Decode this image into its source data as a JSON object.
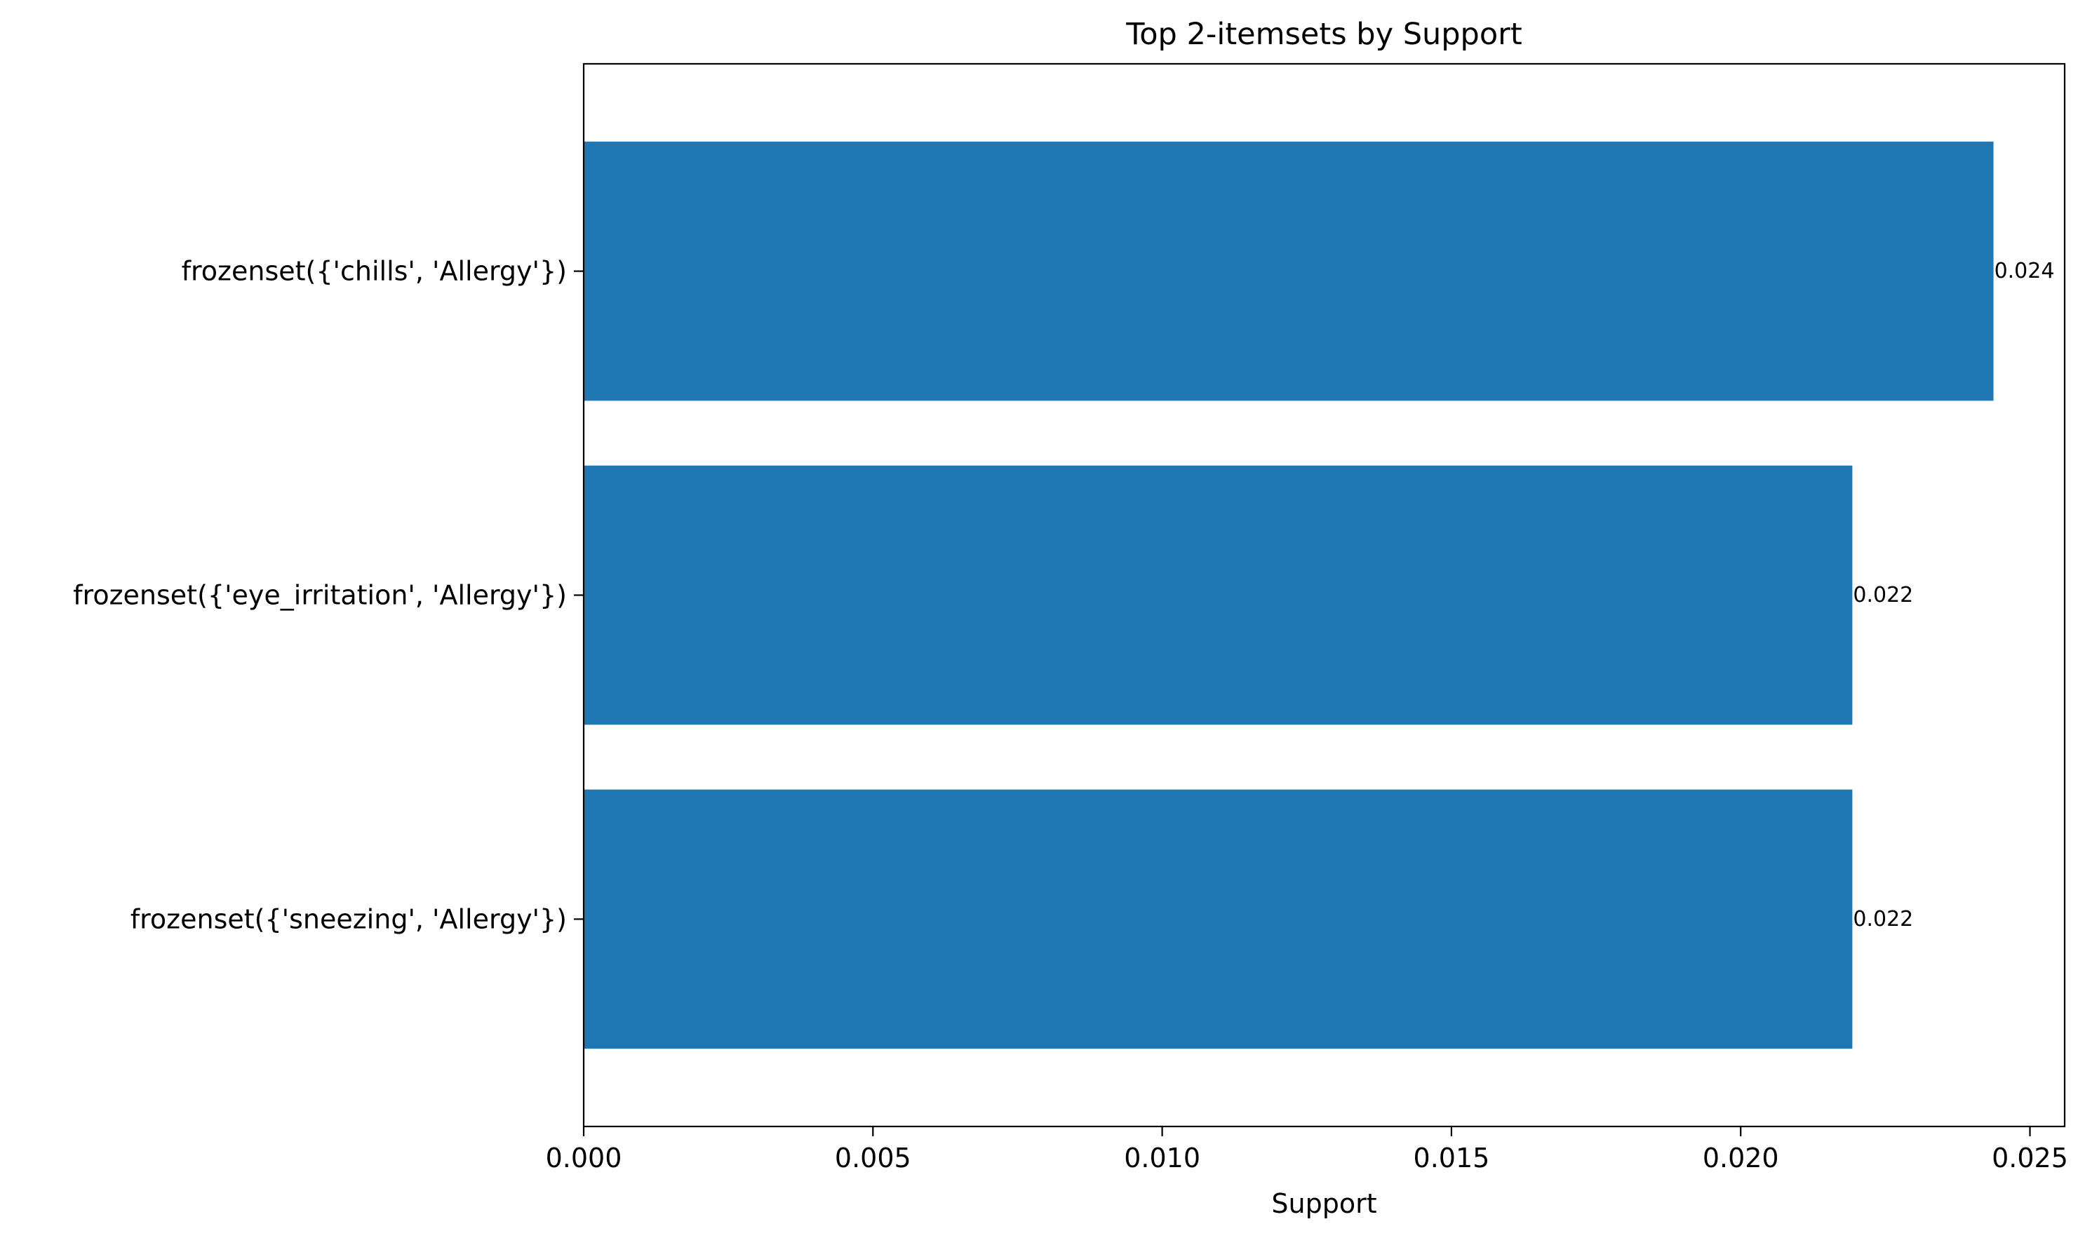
{
  "chart_data": {
    "type": "bar",
    "orientation": "horizontal",
    "title": "Top 2-itemsets by Support",
    "xlabel": "Support",
    "ylabel": "",
    "categories": [
      "frozenset({'chills', 'Allergy'})",
      "frozenset({'eye_irritation', 'Allergy'})",
      "frozenset({'sneezing', 'Allergy'})"
    ],
    "values": [
      0.02437,
      0.02193,
      0.02193
    ],
    "data_labels": [
      "0.024",
      "0.022",
      "0.022"
    ],
    "xlim": [
      0,
      0.0256
    ],
    "xticks": [
      0,
      0.005,
      0.01,
      0.015,
      0.02,
      0.025
    ],
    "xtick_labels": [
      "0.000",
      "0.005",
      "0.010",
      "0.015",
      "0.020",
      "0.025"
    ],
    "grid": false,
    "legend": "none",
    "bar_color": "#1f77b4"
  }
}
